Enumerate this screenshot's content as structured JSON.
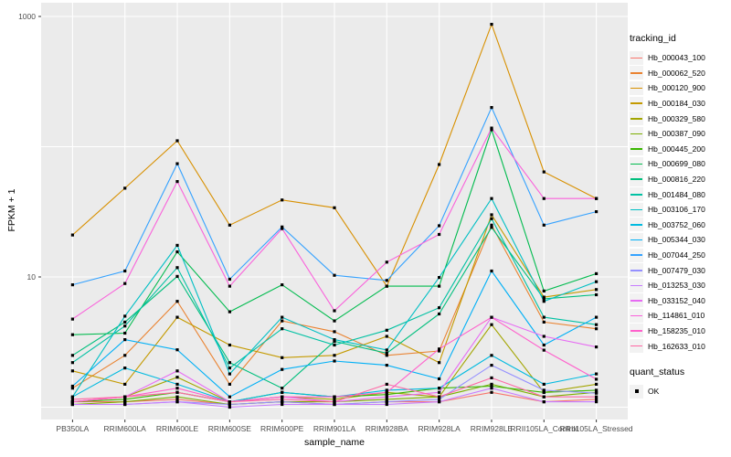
{
  "chart_data": {
    "type": "line",
    "title": "",
    "x_axis": {
      "label": "sample_name",
      "categories": [
        "PB350LA",
        "RRIM600LA",
        "RRIM600LE",
        "RRIM600SE",
        "RRIM600PE",
        "RRIM901LA",
        "RRIM928BA",
        "RRIM928LA",
        "RRIM928LE",
        "RRII105LA_Control",
        "RRII105LA_Stressed"
      ]
    },
    "y_axis": {
      "label": "FPKM + 1",
      "scale": "log10",
      "tick_values": [
        10,
        1000
      ],
      "tick_labels": [
        "10",
        "1000"
      ],
      "gridline_values": [
        1,
        10,
        100,
        1000
      ],
      "range": [
        0.85,
        1200
      ]
    },
    "legend": {
      "title": "tracking_id",
      "position": "right"
    },
    "quant_legend": {
      "title": "quant_status",
      "items": [
        {
          "label": "OK",
          "marker": "black-square"
        }
      ]
    },
    "marker": {
      "shape": "square",
      "size": 3.2,
      "color": "#000000"
    },
    "series": [
      {
        "name": "Hb_000043_100",
        "color": "#F8766D",
        "values": [
          1.1,
          1.1,
          1.15,
          1.05,
          1.1,
          1.05,
          1.1,
          1.1,
          1.3,
          1.1,
          1.15
        ]
      },
      {
        "name": "Hb_000062_520",
        "color": "#EA8331",
        "values": [
          1.4,
          2.5,
          6.5,
          1.5,
          4.6,
          3.8,
          2.5,
          2.7,
          25,
          4.5,
          4.0
        ]
      },
      {
        "name": "Hb_000120_900",
        "color": "#D89000",
        "values": [
          21,
          48,
          111,
          25,
          39,
          34,
          8.5,
          73,
          870,
          64,
          40
        ]
      },
      {
        "name": "Hb_000184_030",
        "color": "#C49A00",
        "values": [
          1.9,
          1.5,
          4.9,
          3.0,
          2.4,
          2.5,
          3.5,
          2.2,
          30,
          7.0,
          8.0
        ]
      },
      {
        "name": "Hb_000329_580",
        "color": "#A3A500",
        "values": [
          1.1,
          1.2,
          1.7,
          1.1,
          1.2,
          1.15,
          1.3,
          1.2,
          4.3,
          1.3,
          1.5
        ]
      },
      {
        "name": "Hb_000387_090",
        "color": "#7CAE00",
        "values": [
          1.05,
          1.1,
          1.2,
          1.05,
          1.1,
          1.1,
          1.15,
          1.2,
          1.5,
          1.2,
          1.3
        ]
      },
      {
        "name": "Hb_000445_200",
        "color": "#39B600",
        "values": [
          1.1,
          1.15,
          1.3,
          1.1,
          1.3,
          1.2,
          1.25,
          1.4,
          1.45,
          1.3,
          1.35
        ]
      },
      {
        "name": "Hb_000699_080",
        "color": "#00BB4E",
        "values": [
          3.6,
          3.7,
          15.6,
          5.4,
          8.7,
          4.6,
          8.5,
          8.5,
          135,
          7.8,
          10.6
        ]
      },
      {
        "name": "Hb_000816_220",
        "color": "#00BF7D",
        "values": [
          2.5,
          4.5,
          10.1,
          2.2,
          1.4,
          3.2,
          2.6,
          5.2,
          24,
          6.8,
          7.3
        ]
      },
      {
        "name": "Hb_001484_080",
        "color": "#00C1A3",
        "values": [
          2.2,
          4.2,
          11.8,
          2.0,
          4.0,
          3.0,
          3.9,
          5.8,
          28,
          4.9,
          4.3
        ]
      },
      {
        "name": "Hb_003106_170",
        "color": "#00BFC4",
        "values": [
          1.2,
          5.0,
          17.5,
          1.8,
          4.9,
          3.3,
          2.75,
          9.9,
          40,
          6.5,
          9.2
        ]
      },
      {
        "name": "Hb_003752_060",
        "color": "#00BAE0",
        "values": [
          1.2,
          2.0,
          1.5,
          1.1,
          1.3,
          1.2,
          1.35,
          1.4,
          2.5,
          1.5,
          1.8
        ]
      },
      {
        "name": "Hb_005344_030",
        "color": "#00B0F6",
        "values": [
          1.45,
          3.3,
          2.76,
          1.2,
          1.95,
          2.26,
          2.1,
          1.65,
          11.1,
          3.0,
          4.9
        ]
      },
      {
        "name": "Hb_007044_250",
        "color": "#35A2FF",
        "values": [
          8.7,
          11.1,
          74,
          9.6,
          24.2,
          10.3,
          9.4,
          24.7,
          200,
          25,
          31.7
        ]
      },
      {
        "name": "Hb_007479_030",
        "color": "#9590FF",
        "values": [
          1.05,
          1.05,
          1.1,
          1.05,
          1.1,
          1.05,
          1.1,
          1.15,
          2.1,
          1.35,
          1.28
        ]
      },
      {
        "name": "Hb_013253_030",
        "color": "#C77CFF",
        "values": [
          1.05,
          1.05,
          1.1,
          1.0,
          1.05,
          1.05,
          1.05,
          1.1,
          1.4,
          1.1,
          1.1
        ]
      },
      {
        "name": "Hb_033152_040",
        "color": "#E76BF3",
        "values": [
          1.1,
          1.2,
          1.9,
          1.1,
          1.2,
          1.1,
          1.2,
          1.3,
          4.9,
          3.5,
          2.9
        ]
      },
      {
        "name": "Hb_114861_010",
        "color": "#FA62DB",
        "values": [
          4.75,
          8.9,
          54,
          8.5,
          23.5,
          5.5,
          13.0,
          21.2,
          139,
          40,
          40
        ]
      },
      {
        "name": "Hb_158235_010",
        "color": "#FF61CC",
        "values": [
          1.1,
          1.2,
          1.4,
          1.1,
          1.2,
          1.2,
          1.3,
          2.8,
          4.9,
          2.74,
          1.64
        ]
      },
      {
        "name": "Hb_162633_010",
        "color": "#FF67A4",
        "values": [
          1.15,
          1.2,
          1.3,
          1.1,
          1.15,
          1.1,
          1.5,
          1.2,
          1.68,
          1.2,
          1.2
        ]
      }
    ]
  },
  "colors": {
    "panel_background": "#EBEBEB",
    "gridline": "#FFFFFF",
    "tick_mark": "#333333",
    "tick_label": "#4D4D4D",
    "legend_key_background": "#F2F2F2"
  }
}
